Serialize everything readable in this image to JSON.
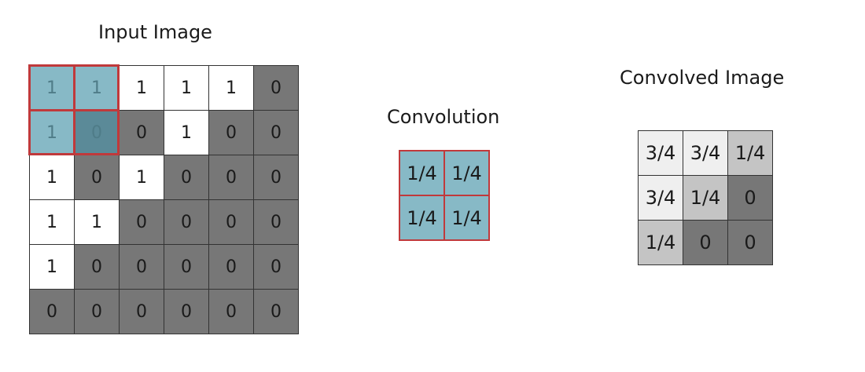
{
  "input": {
    "title": "Input Image",
    "cells": [
      [
        "1",
        "1",
        "1",
        "1",
        "1",
        "0"
      ],
      [
        "1",
        "0",
        "0",
        "1",
        "0",
        "0"
      ],
      [
        "1",
        "0",
        "1",
        "0",
        "0",
        "0"
      ],
      [
        "1",
        "1",
        "0",
        "0",
        "0",
        "0"
      ],
      [
        "1",
        "0",
        "0",
        "0",
        "0",
        "0"
      ],
      [
        "0",
        "0",
        "0",
        "0",
        "0",
        "0"
      ]
    ],
    "highlight_rows": [
      0,
      1
    ],
    "highlight_cols": [
      0,
      1
    ]
  },
  "convolution": {
    "title": "Convolution",
    "cells": [
      [
        "1/4",
        "1/4"
      ],
      [
        "1/4",
        "1/4"
      ]
    ]
  },
  "output": {
    "title": "Convolved Image",
    "cells": [
      [
        "3/4",
        "3/4",
        "1/4"
      ],
      [
        "3/4",
        "1/4",
        "0"
      ],
      [
        "1/4",
        "0",
        "0"
      ]
    ]
  },
  "colors": {
    "one": "#ffffff",
    "zero": "#777777",
    "kernel_fill": "#87b9c6",
    "kernel_fill_on_zero": "#5b8a98",
    "kernel_border": "#c0393b",
    "frac_3_4": "#efefef",
    "frac_1_4": "#c4c4c4",
    "text_on_kernel": "#4f7c88"
  }
}
